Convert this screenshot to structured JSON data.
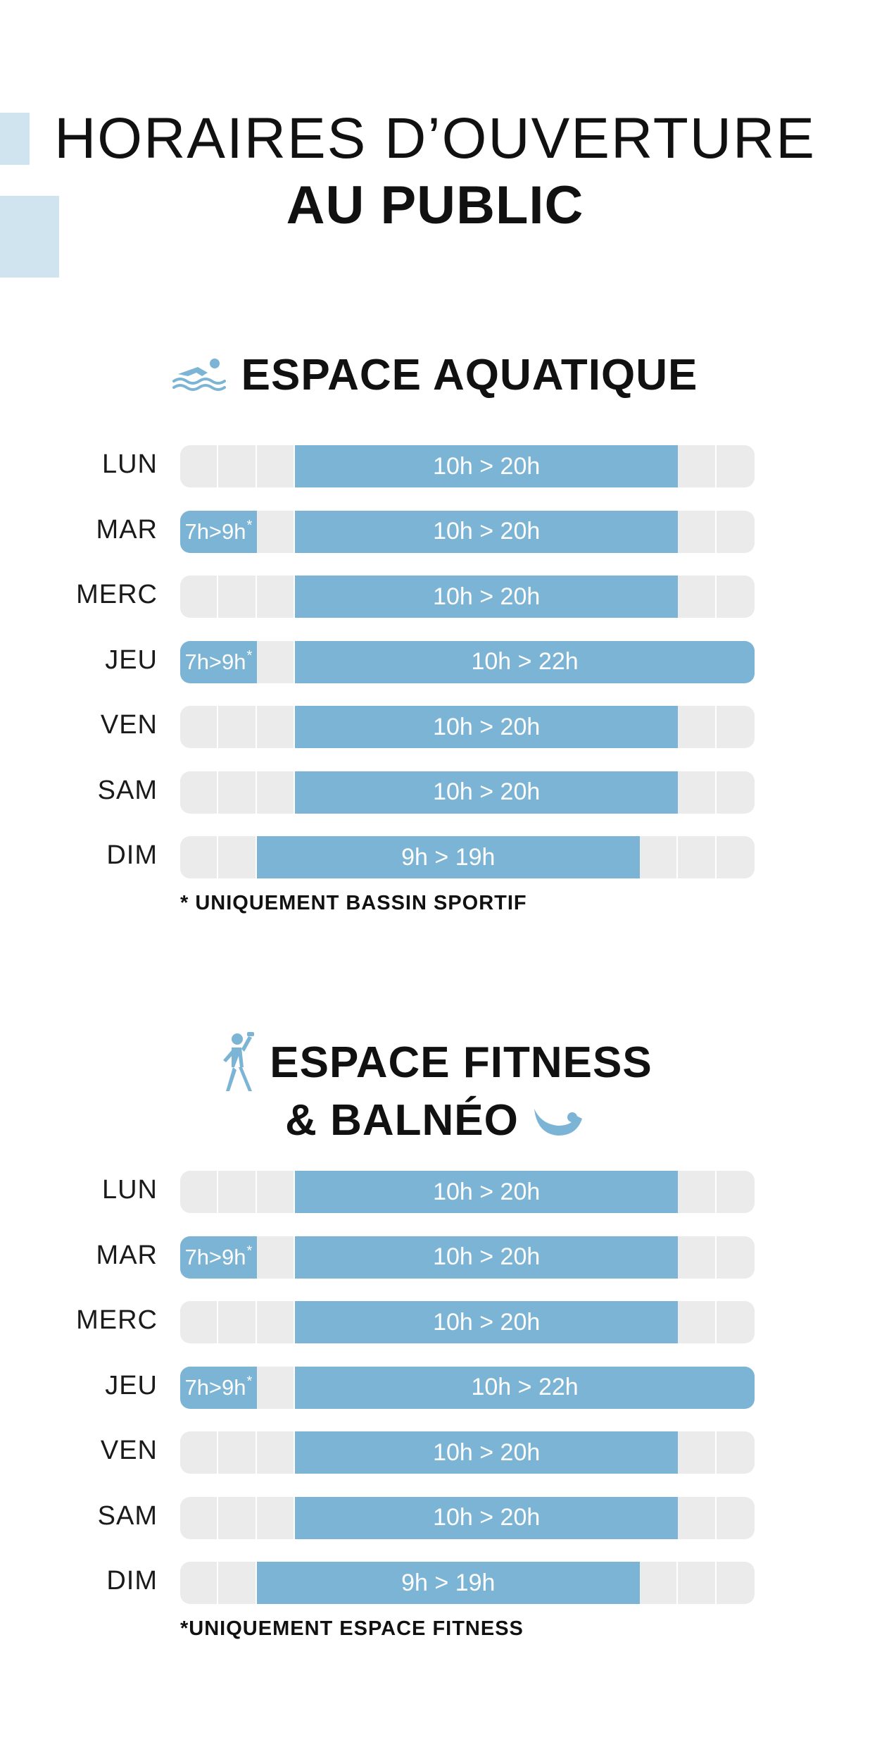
{
  "header": {
    "title_line1": "HORAIRES D’OUVERTURE",
    "title_line2": "AU PUBLIC",
    "accent_color": "#cfe4ef"
  },
  "colors": {
    "bar": "#7bb4d4",
    "track": "#ebebeb",
    "text": "#111111"
  },
  "sections": [
    {
      "title": "ESPACE AQUATIQUE",
      "icon": "swimmer-icon",
      "days": [
        {
          "day": "LUN",
          "slots": [
            {
              "label": "10h > 20h",
              "start": 10,
              "end": 20
            }
          ]
        },
        {
          "day": "MAR",
          "slots": [
            {
              "label": "7h>9h",
              "note_mark": "*",
              "start": 7,
              "end": 9
            },
            {
              "label": "10h > 20h",
              "start": 10,
              "end": 20
            }
          ]
        },
        {
          "day": "MERC",
          "slots": [
            {
              "label": "10h > 20h",
              "start": 10,
              "end": 20
            }
          ]
        },
        {
          "day": "JEU",
          "slots": [
            {
              "label": "7h>9h",
              "note_mark": "*",
              "start": 7,
              "end": 9
            },
            {
              "label": "10h > 22h",
              "start": 10,
              "end": 22
            }
          ]
        },
        {
          "day": "VEN",
          "slots": [
            {
              "label": "10h > 20h",
              "start": 10,
              "end": 20
            }
          ]
        },
        {
          "day": "SAM",
          "slots": [
            {
              "label": "10h > 20h",
              "start": 10,
              "end": 20
            }
          ]
        },
        {
          "day": "DIM",
          "slots": [
            {
              "label": "9h > 19h",
              "start": 9,
              "end": 19
            }
          ]
        }
      ],
      "note": "* UNIQUEMENT BASSIN SPORTIF"
    },
    {
      "title_line1": "ESPACE FITNESS",
      "title_line2": "& BALNÉO",
      "icons": [
        "fitness-person-icon",
        "balneo-wave-icon"
      ],
      "days": [
        {
          "day": "LUN",
          "slots": [
            {
              "label": "10h > 20h",
              "start": 10,
              "end": 20
            }
          ]
        },
        {
          "day": "MAR",
          "slots": [
            {
              "label": "7h>9h",
              "note_mark": "*",
              "start": 7,
              "end": 9
            },
            {
              "label": "10h > 20h",
              "start": 10,
              "end": 20
            }
          ]
        },
        {
          "day": "MERC",
          "slots": [
            {
              "label": "10h > 20h",
              "start": 10,
              "end": 20
            }
          ]
        },
        {
          "day": "JEU",
          "slots": [
            {
              "label": "7h>9h",
              "note_mark": "*",
              "start": 7,
              "end": 9
            },
            {
              "label": "10h > 22h",
              "start": 10,
              "end": 22
            }
          ]
        },
        {
          "day": "VEN",
          "slots": [
            {
              "label": "10h > 20h",
              "start": 10,
              "end": 20
            }
          ]
        },
        {
          "day": "SAM",
          "slots": [
            {
              "label": "10h > 20h",
              "start": 10,
              "end": 20
            }
          ]
        },
        {
          "day": "DIM",
          "slots": [
            {
              "label": "9h > 19h",
              "start": 9,
              "end": 19
            }
          ]
        }
      ],
      "note": "*UNIQUEMENT ESPACE FITNESS"
    }
  ]
}
